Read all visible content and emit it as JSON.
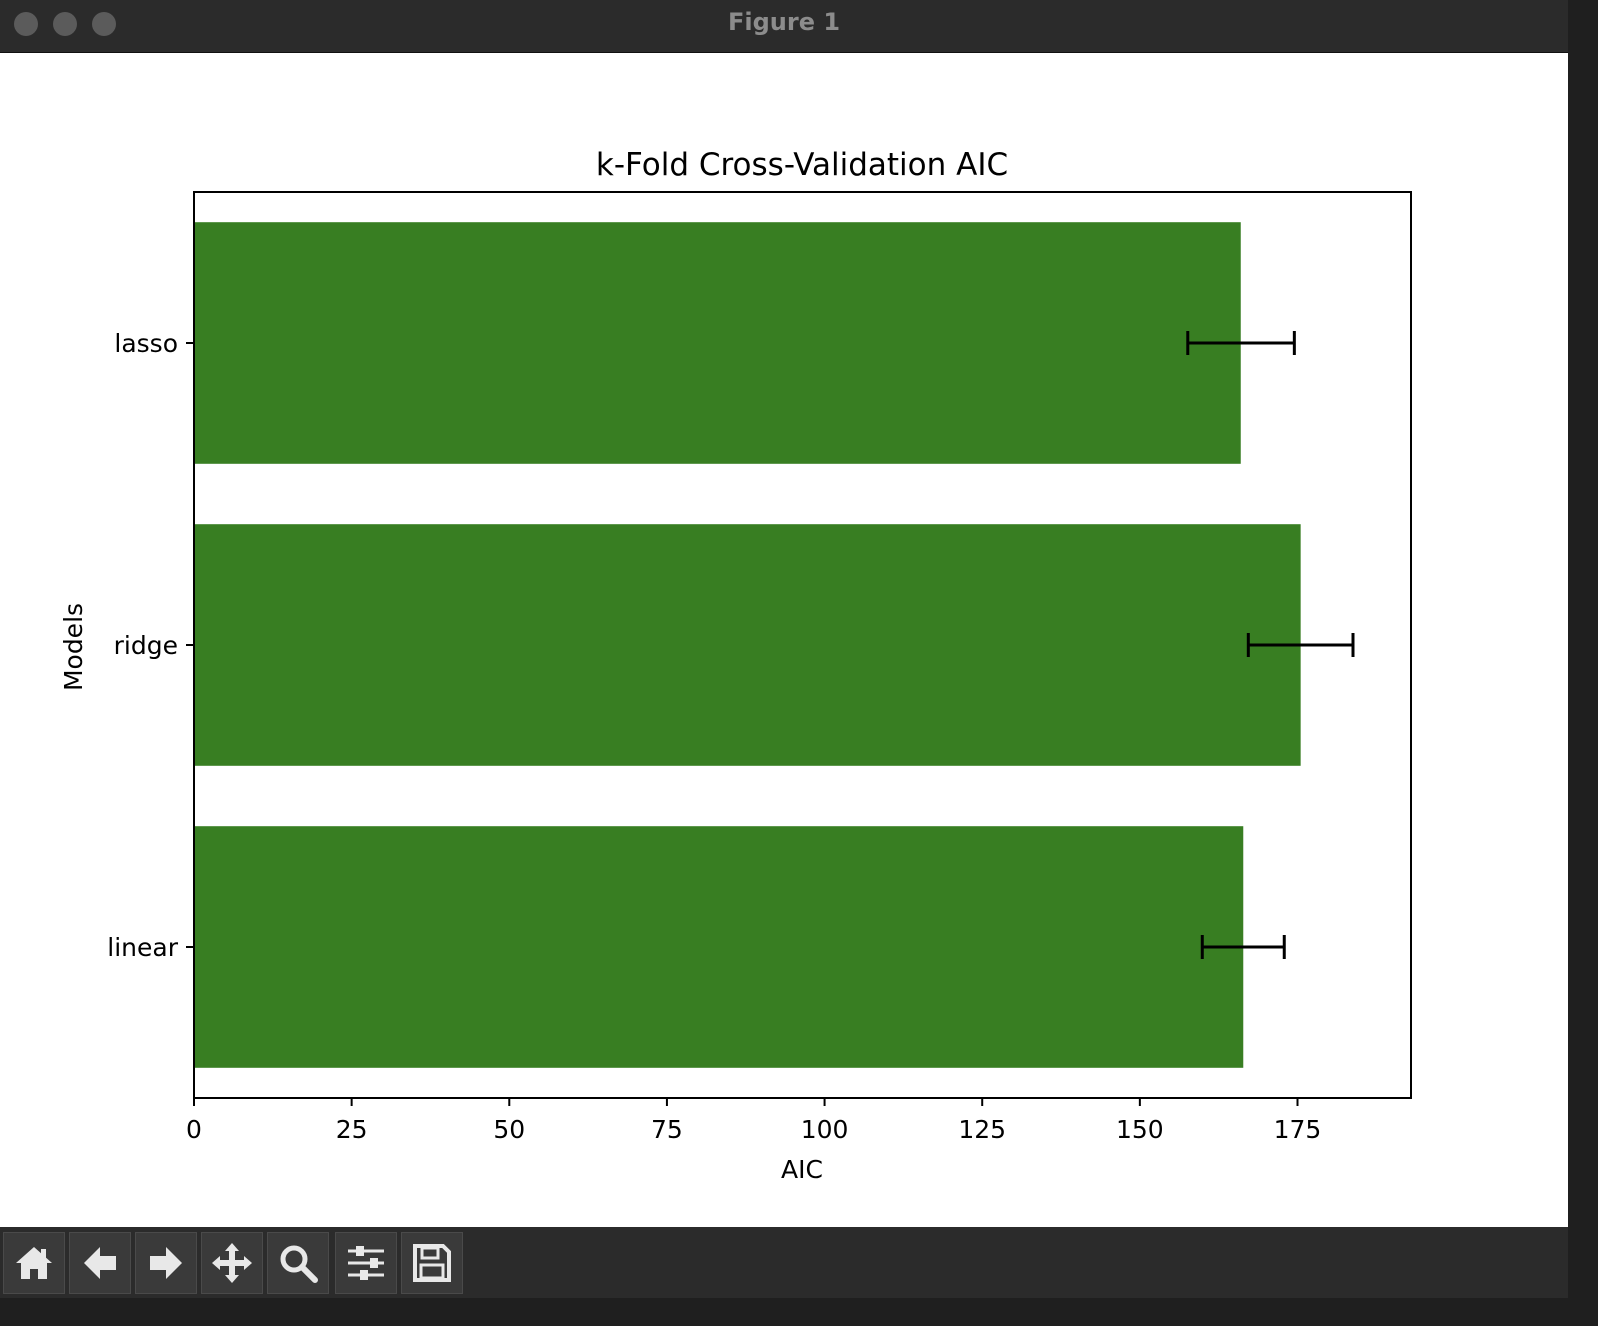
{
  "window": {
    "title": "Figure 1"
  },
  "toolbar": {
    "buttons": [
      {
        "name": "home",
        "icon": "home-icon"
      },
      {
        "name": "back",
        "icon": "arrow-left-icon"
      },
      {
        "name": "forward",
        "icon": "arrow-right-icon"
      },
      {
        "name": "pan",
        "icon": "move-icon"
      },
      {
        "name": "zoom",
        "icon": "magnifier-icon"
      },
      {
        "name": "configure-subplots",
        "icon": "sliders-icon"
      },
      {
        "name": "save",
        "icon": "floppy-disk-icon"
      }
    ]
  },
  "colors": {
    "bar": "#387e22",
    "errorbar": "#000000",
    "axes": "#000000",
    "text": "#000000"
  },
  "chart_data": {
    "type": "bar",
    "orientation": "horizontal",
    "title": "k-Fold Cross-Validation AIC",
    "xlabel": "AIC",
    "ylabel": "Models",
    "categories": [
      "linear",
      "ridge",
      "lasso"
    ],
    "values": [
      166.4,
      175.5,
      166.0
    ],
    "error_low": [
      159.9,
      167.2,
      157.6
    ],
    "error_high": [
      172.9,
      183.8,
      174.5
    ],
    "xlim": [
      0,
      193
    ],
    "xticks": [
      "0",
      "25",
      "50",
      "75",
      "100",
      "125",
      "150",
      "175"
    ],
    "xtick_values": [
      0,
      25,
      50,
      75,
      100,
      125,
      150,
      175
    ],
    "grid": false,
    "legend": false
  }
}
